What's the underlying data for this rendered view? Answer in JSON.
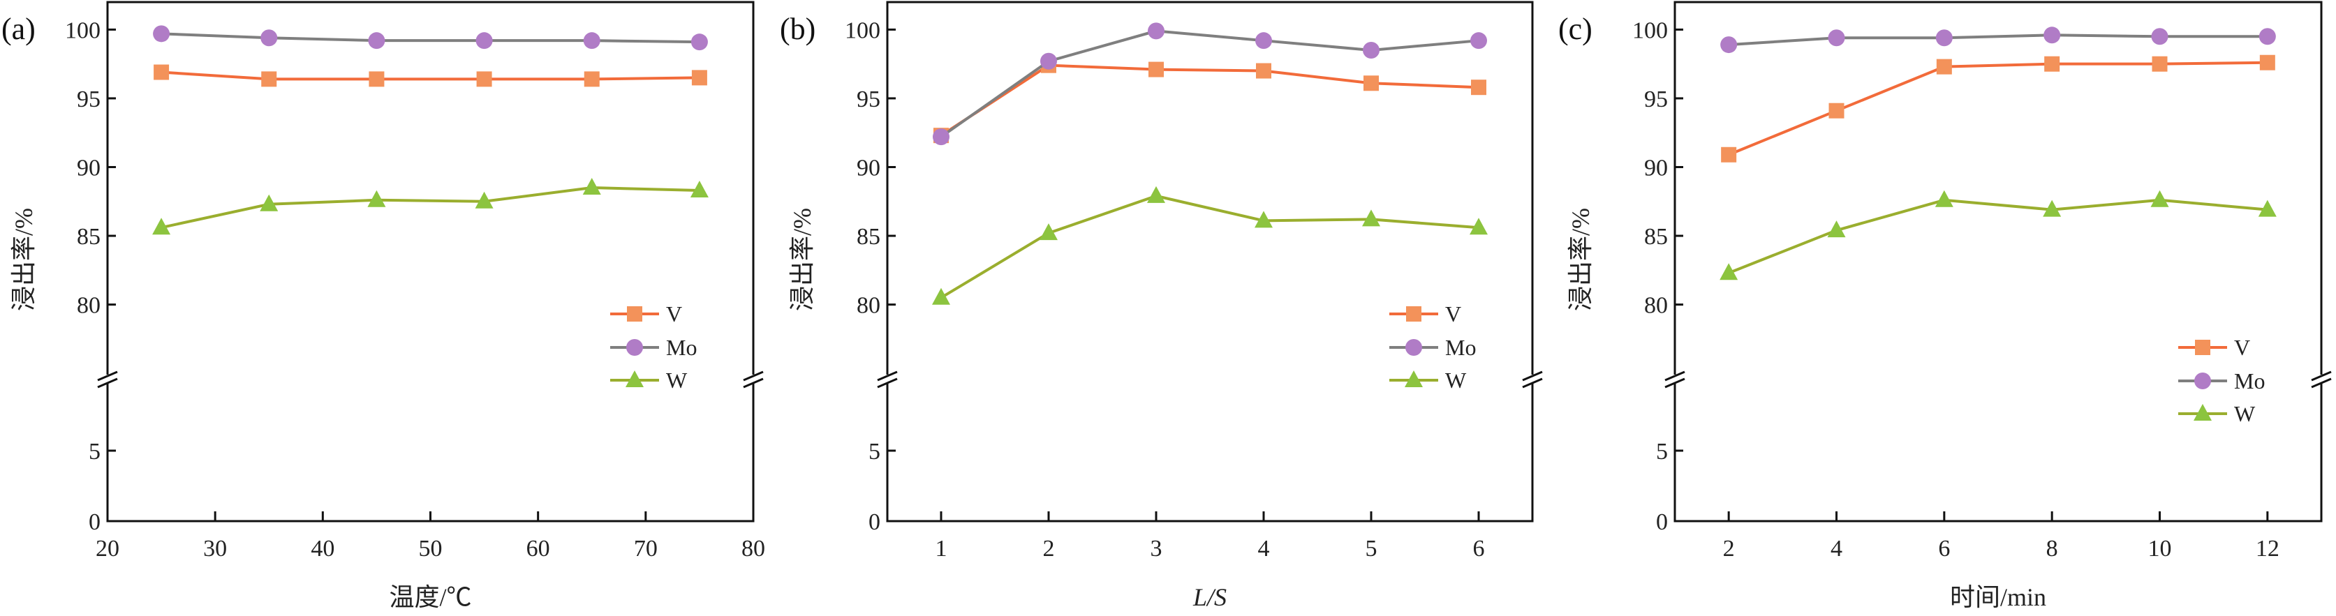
{
  "chart_data": [
    {
      "type": "line",
      "panel_label": "(a)",
      "xlabel": "温度/℃",
      "ylabel": "浸出率/%",
      "xlim": [
        20,
        80
      ],
      "xticks": [
        20,
        30,
        40,
        50,
        60,
        70,
        80
      ],
      "ylim_lower": [
        0,
        10
      ],
      "ylim_upper": [
        74.6,
        102
      ],
      "yticks": [
        0,
        5,
        80,
        85,
        90,
        95,
        100
      ],
      "axis_break": true,
      "legend_position": "lower-right",
      "x": [
        25,
        35,
        45,
        55,
        65,
        75
      ],
      "series": [
        {
          "name": "V",
          "marker": "square",
          "values": [
            96.9,
            96.4,
            96.4,
            96.4,
            96.4,
            96.5
          ]
        },
        {
          "name": "Mo",
          "marker": "circle",
          "values": [
            99.7,
            99.4,
            99.2,
            99.2,
            99.2,
            99.1
          ]
        },
        {
          "name": "W",
          "marker": "triangle",
          "values": [
            85.6,
            87.3,
            87.6,
            87.5,
            88.5,
            88.3
          ]
        }
      ]
    },
    {
      "type": "line",
      "panel_label": "(b)",
      "xlabel": "L/S",
      "ylabel": "浸出率/%",
      "xlim": [
        0.5,
        6.5
      ],
      "xticks": [
        1,
        2,
        3,
        4,
        5,
        6
      ],
      "ylim_lower": [
        0,
        10
      ],
      "ylim_upper": [
        74.6,
        102
      ],
      "yticks": [
        0,
        5,
        80,
        85,
        90,
        95,
        100
      ],
      "axis_break": true,
      "legend_position": "lower-right",
      "x": [
        1,
        2,
        3,
        4,
        5,
        6
      ],
      "series": [
        {
          "name": "V",
          "marker": "square",
          "values": [
            92.3,
            97.4,
            97.1,
            97.0,
            96.1,
            95.8
          ]
        },
        {
          "name": "Mo",
          "marker": "circle",
          "values": [
            92.2,
            97.7,
            99.9,
            99.2,
            98.5,
            99.2
          ]
        },
        {
          "name": "W",
          "marker": "triangle",
          "values": [
            80.5,
            85.2,
            87.9,
            86.1,
            86.2,
            85.6
          ]
        }
      ]
    },
    {
      "type": "line",
      "panel_label": "(c)",
      "xlabel": "时间/min",
      "ylabel": "浸出率/%",
      "xlim": [
        1,
        13
      ],
      "xticks": [
        2,
        4,
        6,
        8,
        10,
        12
      ],
      "ylim_lower": [
        0,
        10
      ],
      "ylim_upper": [
        74.6,
        102
      ],
      "yticks": [
        0,
        5,
        80,
        85,
        90,
        95,
        100
      ],
      "axis_break": true,
      "legend_position": "lower-right",
      "x": [
        2,
        4,
        6,
        8,
        10,
        12
      ],
      "series": [
        {
          "name": "V",
          "marker": "square",
          "values": [
            90.9,
            94.1,
            97.3,
            97.5,
            97.5,
            97.6
          ]
        },
        {
          "name": "Mo",
          "marker": "circle",
          "values": [
            98.9,
            99.4,
            99.4,
            99.6,
            99.5,
            99.5
          ]
        },
        {
          "name": "W",
          "marker": "triangle",
          "values": [
            82.3,
            85.4,
            87.6,
            86.9,
            87.6,
            86.9
          ]
        }
      ]
    }
  ],
  "colors": {
    "V": {
      "line": "#f26b3a",
      "marker": "#f3925a"
    },
    "Mo": {
      "line": "#7f7f7f",
      "marker": "#b07cc6"
    },
    "W": {
      "line": "#9aae2e",
      "marker": "#8cc43f"
    },
    "axis": "#111111"
  }
}
